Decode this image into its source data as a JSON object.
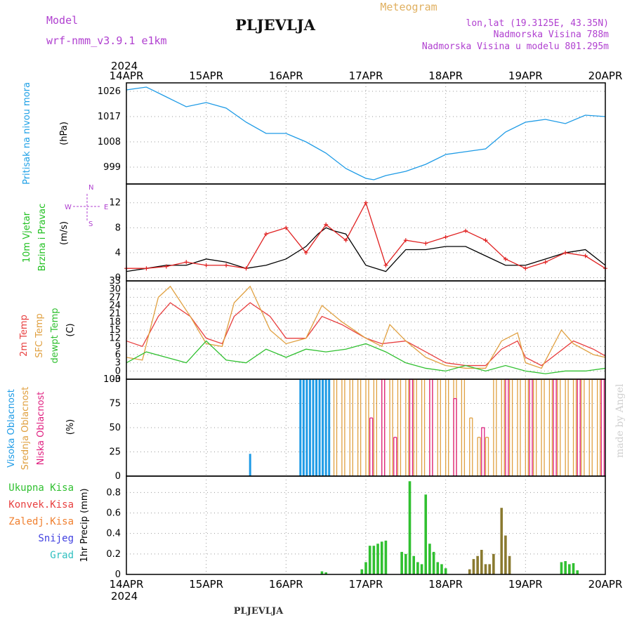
{
  "header": {
    "model_label": "Model",
    "model_name": "wrf-nmm_v3.9.1  e1km",
    "title": "PLJEVLJA",
    "meteogram": "Meteogram",
    "lonlat": "lon,lat (19.3125E, 43.35N)",
    "elevation": "Nadmorska Visina 788m",
    "model_elevation": "Nadmorska Visina u modelu 801.295m",
    "footer_title": "PLJEVLJA",
    "watermark": "made by Angel"
  },
  "time_axis": {
    "year": "2024",
    "labels": [
      "14APR",
      "15APR",
      "16APR",
      "17APR",
      "18APR",
      "19APR",
      "20APR"
    ],
    "colors": {
      "label": "#000000"
    }
  },
  "chart_data": [
    {
      "type": "line",
      "panel": "pressure",
      "ylabel": [
        "Pritisak na nivou mora",
        "(hPa)"
      ],
      "yticks": [
        999,
        1008,
        1017,
        1026
      ],
      "ylim": [
        993,
        1029
      ],
      "colors": {
        "line": "#1e9be6",
        "ylabel": "#1ea0e6"
      },
      "series": [
        {
          "x": [
            0,
            0.25,
            0.5,
            0.75,
            1,
            1.25,
            1.5,
            1.75,
            2,
            2.25,
            2.5,
            2.75,
            3,
            3.1,
            3.25,
            3.5,
            3.75,
            4,
            4.25,
            4.5,
            4.75,
            5,
            5.25,
            5.5,
            5.75,
            6
          ],
          "values": [
            1026.5,
            1027.5,
            1024,
            1020.5,
            1022,
            1020,
            1015,
            1011,
            1011,
            1008,
            1004,
            998.5,
            995,
            994.5,
            996,
            997.5,
            1000,
            1003.5,
            1004.5,
            1005.5,
            1011.5,
            1015,
            1016,
            1014.5,
            1017.5,
            1017
          ]
        }
      ]
    },
    {
      "type": "line",
      "panel": "wind",
      "ylabel": [
        "10m Vjetar",
        "Brzina i Pravac",
        "(m/s)"
      ],
      "yticks": [
        0,
        4,
        8,
        12
      ],
      "ylim": [
        -0.5,
        15
      ],
      "colors": {
        "speed": "#000000",
        "gust": "#e02020",
        "ylabel": "#20c020"
      },
      "compass": {
        "n": "N",
        "e": "E",
        "w": "W",
        "s": "S"
      },
      "series": [
        {
          "name": "speed",
          "x": [
            0,
            0.25,
            0.5,
            0.75,
            1,
            1.25,
            1.5,
            1.75,
            2,
            2.25,
            2.4,
            2.5,
            2.6,
            2.75,
            3,
            3.25,
            3.5,
            3.75,
            4,
            4.25,
            4.5,
            4.75,
            5,
            5.25,
            5.5,
            5.75,
            6
          ],
          "values": [
            1,
            1.5,
            2,
            2,
            3,
            2.5,
            1.5,
            2,
            3,
            5,
            7,
            8,
            7.5,
            7,
            2,
            1,
            4.5,
            4.5,
            5,
            5,
            3.5,
            2,
            2,
            3,
            4,
            4.5,
            2
          ]
        },
        {
          "name": "gust",
          "x": [
            0,
            0.25,
            0.5,
            0.75,
            1,
            1.25,
            1.5,
            1.75,
            2,
            2.25,
            2.5,
            2.75,
            3,
            3.25,
            3.5,
            3.75,
            4,
            4.25,
            4.5,
            4.75,
            5,
            5.25,
            5.5,
            5.75,
            6
          ],
          "values": [
            1.5,
            1.5,
            1.8,
            2.5,
            2,
            2,
            1.5,
            7,
            8,
            4,
            8.5,
            6,
            12,
            2,
            6,
            5.5,
            6.5,
            7.5,
            6,
            3,
            1.5,
            2.5,
            4,
            3.5,
            1.5
          ]
        }
      ]
    },
    {
      "type": "line",
      "panel": "temperature",
      "ylabel": [
        "2m Temp",
        "SFC Temp",
        "dewpt Temp",
        "(C)"
      ],
      "yticks": [
        -3,
        0,
        3,
        6,
        9,
        12,
        15,
        18,
        21,
        24,
        27,
        30,
        33
      ],
      "ylim": [
        -3,
        33
      ],
      "colors": {
        "t2m": "#e84040",
        "sfc": "#e0a040",
        "dew": "#30c030"
      },
      "series": [
        {
          "name": "2m Temp",
          "x": [
            0,
            0.2,
            0.4,
            0.55,
            0.8,
            1,
            1.2,
            1.35,
            1.55,
            1.8,
            2,
            2.25,
            2.45,
            2.7,
            3,
            3.2,
            3.5,
            3.75,
            4,
            4.25,
            4.5,
            4.7,
            4.9,
            5,
            5.2,
            5.6,
            5.85,
            6
          ],
          "values": [
            11,
            9,
            20,
            25,
            20,
            12,
            10,
            20,
            25,
            20,
            12,
            12,
            20,
            17,
            12,
            10,
            11,
            7,
            3,
            2,
            2,
            8,
            11,
            5,
            2,
            11,
            8,
            5.5
          ]
        },
        {
          "name": "SFC Temp",
          "x": [
            0,
            0.2,
            0.4,
            0.55,
            0.8,
            1,
            1.2,
            1.35,
            1.55,
            1.8,
            2,
            2.25,
            2.45,
            2.7,
            3,
            3.2,
            3.3,
            3.5,
            3.75,
            4,
            4.25,
            4.5,
            4.7,
            4.9,
            5,
            5.2,
            5.45,
            5.6,
            5.85,
            6
          ],
          "values": [
            5,
            4,
            27,
            31,
            20,
            10,
            9,
            25,
            31,
            15,
            10,
            12,
            24,
            18,
            12,
            9,
            17,
            11,
            5,
            2,
            1,
            1,
            11,
            14,
            3,
            1,
            15,
            10,
            6,
            5
          ]
        },
        {
          "name": "dewpt Temp",
          "x": [
            0,
            0.25,
            0.5,
            0.75,
            1,
            1.25,
            1.5,
            1.75,
            2,
            2.25,
            2.5,
            2.75,
            3,
            3.25,
            3.5,
            3.75,
            4,
            4.25,
            4.5,
            4.75,
            5,
            5.25,
            5.5,
            5.75,
            6
          ],
          "values": [
            3,
            7,
            5,
            3,
            11,
            4,
            3,
            8,
            5,
            8,
            7,
            8,
            10,
            7,
            3,
            1,
            0,
            2,
            0,
            2,
            0,
            -1,
            0,
            0,
            1
          ]
        }
      ]
    },
    {
      "type": "bar",
      "panel": "cloud",
      "ylabel": [
        "Visoka Oblacnost",
        "Srednja Oblacnost",
        "Niska Oblacnost",
        "(%)"
      ],
      "yticks": [
        0,
        25,
        50,
        75,
        100
      ],
      "ylim": [
        0,
        100
      ],
      "colors": {
        "high": "#1e9be6",
        "mid": "#e0a040",
        "low": "#e02080"
      },
      "series": [
        {
          "name": "Visoka Oblacnost",
          "x": [
            1.55,
            2.18,
            2.22,
            2.26,
            2.3,
            2.34,
            2.38,
            2.42,
            2.46,
            2.5,
            2.54
          ],
          "values": [
            23,
            100,
            100,
            100,
            100,
            100,
            100,
            100,
            100,
            100,
            100
          ]
        },
        {
          "name": "Srednja Oblacnost",
          "x": [
            2.6,
            2.7,
            2.8,
            2.9,
            3,
            3.1,
            3.2,
            3.3,
            3.4,
            3.5,
            3.6,
            3.7,
            3.8,
            3.9,
            4,
            4.1,
            4.2,
            4.3,
            4.4,
            4.5,
            4.6,
            4.7,
            4.8,
            4.9,
            5,
            5.1,
            5.2,
            5.3,
            5.4,
            5.5,
            5.6,
            5.7,
            5.8,
            5.9
          ],
          "values": [
            100,
            100,
            100,
            100,
            100,
            100,
            100,
            100,
            100,
            100,
            100,
            100,
            100,
            100,
            100,
            100,
            100,
            60,
            40,
            40,
            100,
            100,
            100,
            100,
            100,
            100,
            100,
            100,
            100,
            100,
            100,
            100,
            100,
            100
          ]
        },
        {
          "name": "Niska Oblacnost",
          "x": [
            3.05,
            3.2,
            3.35,
            3.55,
            3.8,
            4.1,
            4.45,
            4.75,
            5.05,
            5.35,
            5.65,
            5.95
          ],
          "values": [
            60,
            100,
            40,
            100,
            100,
            80,
            50,
            100,
            100,
            100,
            100,
            100
          ]
        }
      ]
    },
    {
      "type": "bar",
      "panel": "precipitation",
      "ylabel": [
        "1hr Precip (mm)"
      ],
      "legend": [
        "Ukupna Kisa",
        "Konvek.Kisa",
        "Zaledj.Kisa",
        "Snijeg",
        "Grad"
      ],
      "yticks": [
        0,
        0.2,
        0.4,
        0.6,
        0.8
      ],
      "ylim": [
        0,
        0.96
      ],
      "colors": {
        "Ukupna Kisa": "#30c030",
        "Konvek.Kisa": "#e84040",
        "Zaledj.Kisa": "#f08030",
        "Snijeg": "#4040e0",
        "Grad": "#30c0c0",
        "mixed": "#8a7a30"
      },
      "series": [
        {
          "name": "Ukupna Kisa",
          "x": [
            2.45,
            2.5,
            2.95,
            3.0,
            3.05,
            3.1,
            3.15,
            3.2,
            3.25,
            3.45,
            3.5,
            3.55,
            3.6,
            3.65,
            3.7,
            3.75,
            3.8,
            3.85,
            3.9,
            3.95,
            4.0,
            4.3,
            4.35,
            4.4,
            4.45,
            4.5,
            4.55,
            4.6,
            4.7,
            4.75,
            4.8,
            5.45,
            5.5,
            5.55,
            5.6,
            5.65
          ],
          "values": [
            0.03,
            0.02,
            0.05,
            0.12,
            0.28,
            0.28,
            0.3,
            0.32,
            0.33,
            0.22,
            0.2,
            0.91,
            0.18,
            0.12,
            0.1,
            0.78,
            0.3,
            0.22,
            0.12,
            0.1,
            0.06,
            0.05,
            0.15,
            0.18,
            0.24,
            0.1,
            0.1,
            0.2,
            0.65,
            0.38,
            0.18,
            0.12,
            0.13,
            0.1,
            0.11,
            0.04
          ]
        }
      ]
    }
  ]
}
